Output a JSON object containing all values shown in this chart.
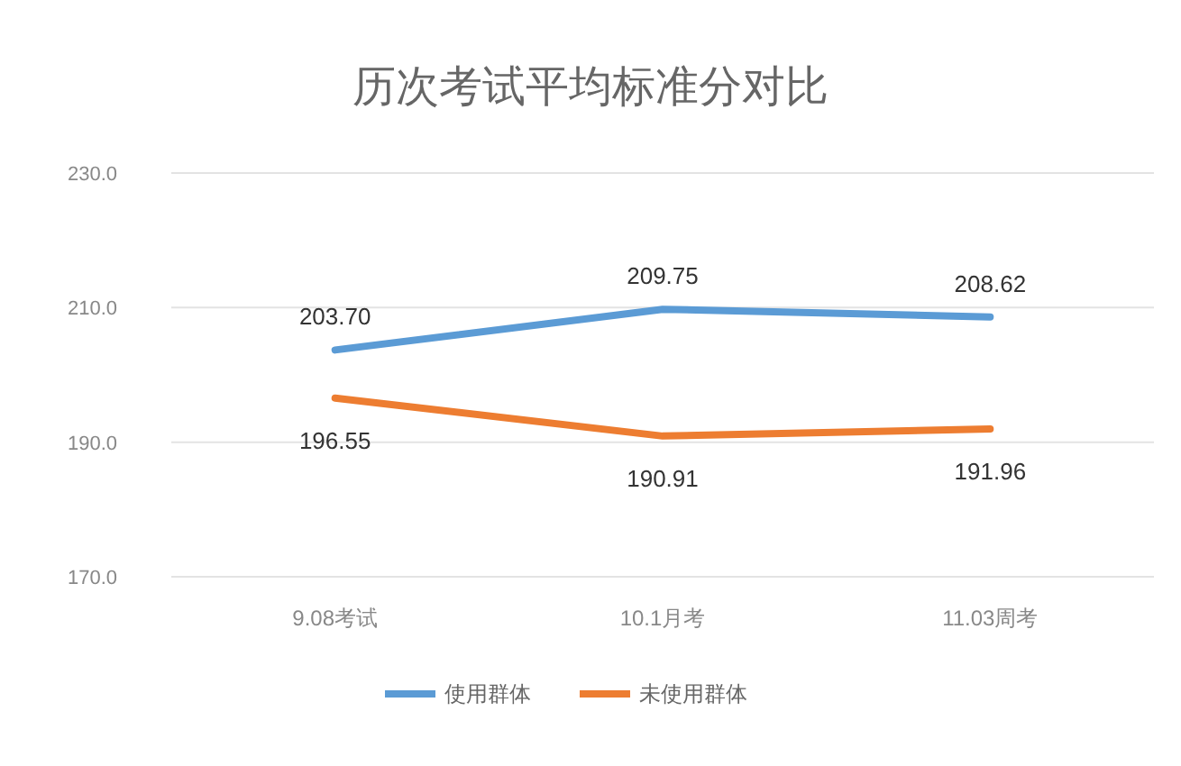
{
  "chart_data": {
    "type": "line",
    "title": "历次考试平均标准分对比",
    "categories": [
      "9.08考试",
      "10.1月考",
      "11.03周考"
    ],
    "series": [
      {
        "name": "使用群体",
        "color": "#5b9bd5",
        "values": [
          203.7,
          209.75,
          208.62
        ],
        "value_labels": [
          "203.70",
          "209.75",
          "208.62"
        ]
      },
      {
        "name": "未使用群体",
        "color": "#ed7d31",
        "values": [
          196.55,
          190.91,
          191.96
        ],
        "value_labels": [
          "196.55",
          "190.91",
          "191.96"
        ]
      }
    ],
    "ylim": [
      170,
      230
    ],
    "yticks": [
      {
        "value": 170,
        "label": "170.0"
      },
      {
        "value": 190,
        "label": "190.0"
      },
      {
        "value": 210,
        "label": "210.0"
      },
      {
        "value": 230,
        "label": "230.0"
      }
    ],
    "grid": "y",
    "legend": "bottom",
    "marker": "none",
    "line_style": "solid"
  }
}
